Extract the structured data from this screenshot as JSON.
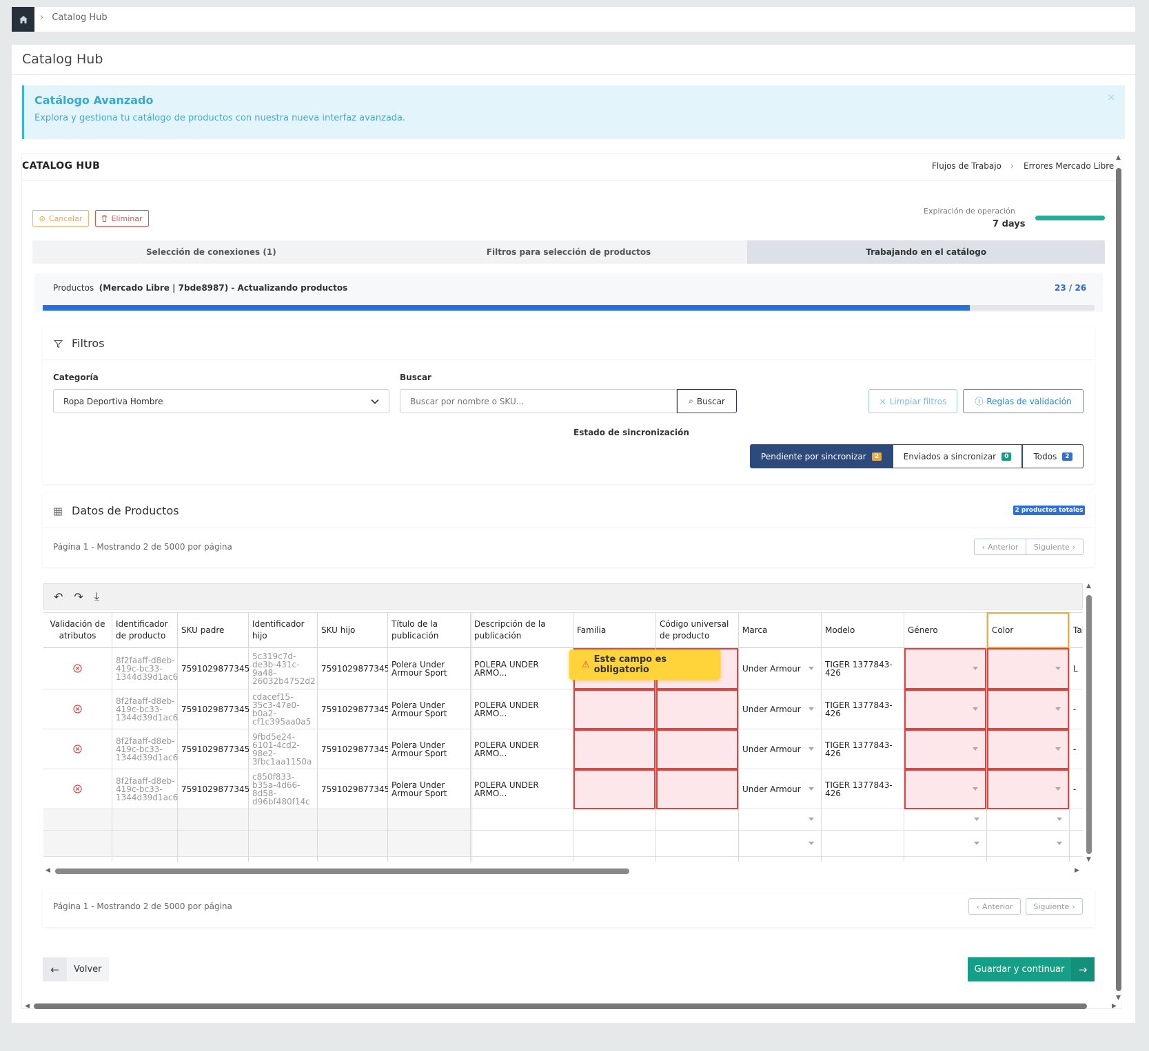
{
  "breadcrumb": {
    "current": "Catalog Hub"
  },
  "page": {
    "title": "Catalog Hub"
  },
  "alert": {
    "title": "Catálogo Avanzado",
    "text": "Explora y gestiona tu catálogo de productos con nuestra nueva interfaz avanzada.",
    "close": "×"
  },
  "hub": {
    "label": "CATALOG HUB",
    "workflow_link": "Flujos de Trabajo",
    "workflow_current": "Errores Mercado Libre"
  },
  "actions": {
    "cancel": "Cancelar",
    "delete": "Eliminar"
  },
  "expiration": {
    "label": "Expiración de operación",
    "value": "7 days"
  },
  "steps": [
    {
      "label": "Selección de conexiones (1)"
    },
    {
      "label": "Filtros para selección de productos"
    },
    {
      "label": "Trabajando en el catálogo"
    }
  ],
  "progress": {
    "label_prefix": "Productos",
    "label_detail": "(Mercado Libre | 7bde8987) - Actualizando productos",
    "count": "23 / 26",
    "done": 23,
    "total": 26
  },
  "filters": {
    "title": "Filtros",
    "category_label": "Categoría",
    "category_value": "Ropa Deportiva Hombre",
    "search_label": "Buscar",
    "search_placeholder": "Buscar por nombre o SKU...",
    "search_button": "Buscar",
    "clear_button": "Limpiar filtros",
    "rules_button": "Reglas de validación",
    "sync_label": "Estado de sincronización",
    "sync_options": [
      {
        "label": "Pendiente por sincronizar",
        "count": "2",
        "color": "#f0a93b"
      },
      {
        "label": "Enviados a sincronizar",
        "count": "0",
        "color": "#159f87"
      },
      {
        "label": "Todos",
        "count": "2",
        "color": "#2d6fd8"
      }
    ]
  },
  "data": {
    "title": "Datos de Productos",
    "total_badge": "2 productos totales",
    "page_info": "Página 1 - Mostrando 2 de 5000 por página",
    "prev": "Anterior",
    "next": "Siguiente"
  },
  "grid": {
    "tooltip": "Este campo es obligatorio",
    "columns": [
      "Validación de atributos",
      "Identificador de producto",
      "SKU padre",
      "Identificador hijo",
      "SKU hijo",
      "Título de la publicación",
      "Descripción de la publicación",
      "Familia",
      "Código universal de producto",
      "Marca",
      "Modelo",
      "Género",
      "Color",
      "Tal"
    ],
    "rows": [
      {
        "product_id": "8f2faaff-d8eb-419c-bc33-1344d39d1ac6",
        "sku_parent": "7591029877345",
        "child_id": "5c319c7d-de3b-431c-9a48-26032b4752d2",
        "sku_child": "7591029877345",
        "title": "Polera Under Armour Sport",
        "description": "POLERA UNDER ARMO...",
        "brand": "Under Armour",
        "model": "TIGER 1377843-426",
        "size": "L"
      },
      {
        "product_id": "8f2faaff-d8eb-419c-bc33-1344d39d1ac6",
        "sku_parent": "7591029877345",
        "child_id": "cdacef15-35c3-47e0-b0a2-cf1c395aa0a5",
        "sku_child": "7591029877345",
        "title": "Polera Under Armour Sport",
        "description": "POLERA UNDER ARMO...",
        "brand": "Under Armour",
        "model": "TIGER 1377843-426",
        "size": "-"
      },
      {
        "product_id": "8f2faaff-d8eb-419c-bc33-1344d39d1ac6",
        "sku_parent": "7591029877345",
        "child_id": "9fbd5e24-6101-4cd2-98e2-3fbc1aa1150a",
        "sku_child": "7591029877345",
        "title": "Polera Under Armour Sport",
        "description": "POLERA UNDER ARMO...",
        "brand": "Under Armour",
        "model": "TIGER 1377843-426",
        "size": "-"
      },
      {
        "product_id": "8f2faaff-d8eb-419c-bc33-1344d39d1ac6",
        "sku_parent": "7591029877345",
        "child_id": "c850f833-b35a-4d66-8d58-d96bf480f14c",
        "sku_child": "7591029877345",
        "title": "Polera Under Armour Sport",
        "description": "POLERA UNDER ARMO...",
        "brand": "Under Armour",
        "model": "TIGER 1377843-426",
        "size": "-"
      }
    ]
  },
  "footer": {
    "back": "Volver",
    "save": "Guardar y continuar"
  }
}
